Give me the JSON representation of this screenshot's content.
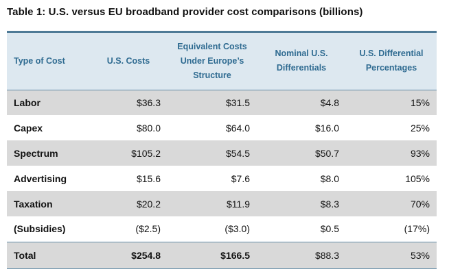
{
  "title": "Table 1: U.S. versus EU broadband provider cost comparisons (billions)",
  "headers": {
    "type": "Type of Cost",
    "us_costs": "U.S. Costs",
    "eq_line1": "Equivalent Costs",
    "eq_line2": "Under Europe’s",
    "eq_line3": "Structure",
    "nom_line1": "Nominal U.S.",
    "nom_line2": "Differentials",
    "pct_line1": "U.S. Differential",
    "pct_line2": "Percentages"
  },
  "rows": [
    {
      "type": "Labor",
      "us": "$36.3",
      "eu": "$31.5",
      "nominal": "$4.8",
      "pct": "15%"
    },
    {
      "type": "Capex",
      "us": "$80.0",
      "eu": "$64.0",
      "nominal": "$16.0",
      "pct": "25%"
    },
    {
      "type": "Spectrum",
      "us": "$105.2",
      "eu": "$54.5",
      "nominal": "$50.7",
      "pct": "93%"
    },
    {
      "type": "Advertising",
      "us": "$15.6",
      "eu": "$7.6",
      "nominal": "$8.0",
      "pct": "105%"
    },
    {
      "type": "Taxation",
      "us": "$20.2",
      "eu": "$11.9",
      "nominal": "$8.3",
      "pct": "70%"
    },
    {
      "type": "(Subsidies)",
      "us": "($2.5)",
      "eu": "($3.0)",
      "nominal": "$0.5",
      "pct": "(17%)"
    }
  ],
  "total": {
    "type": "Total",
    "us": "$254.8",
    "eu": "$166.5",
    "nominal": "$88.3",
    "pct": "53%"
  }
}
